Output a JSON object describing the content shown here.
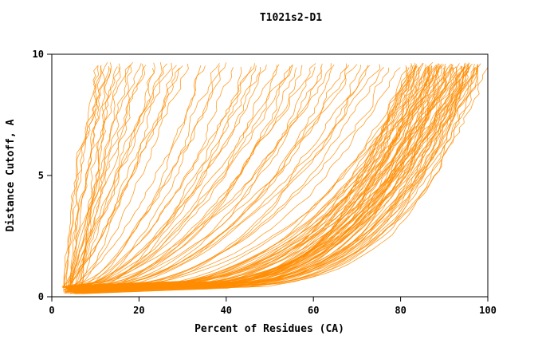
{
  "chart_data": {
    "type": "line",
    "title": "T1021s2-D1",
    "xlabel": "Percent of Residues (CA)",
    "ylabel": "Distance Cutoff, A",
    "xlim": [
      0,
      100
    ],
    "ylim": [
      0,
      10
    ],
    "xticks": [
      0,
      20,
      40,
      60,
      80,
      100
    ],
    "yticks": [
      0,
      5,
      10
    ],
    "grid": false,
    "legend": "none",
    "line_color": "#FF8C00",
    "axis_color": "#000000",
    "background_color": "#FFFFFF",
    "description": "Cumulative GDT-style plot: each orange curve is one model; x = percent of CA residues under the distance cutoff y. Curves parameterized as [percent_at_top_cutoff, shape_exponent].",
    "curve_y_top": 9.6,
    "x_base_range": [
      2.5,
      7
    ],
    "curves": [
      [
        100,
        0.2
      ],
      [
        99,
        0.24
      ],
      [
        99,
        0.18
      ],
      [
        99,
        0.22
      ],
      [
        98,
        0.28
      ],
      [
        98,
        0.21
      ],
      [
        98,
        0.19
      ],
      [
        97,
        0.18
      ],
      [
        97,
        0.3
      ],
      [
        97,
        0.24
      ],
      [
        97,
        0.21
      ],
      [
        96,
        0.2
      ],
      [
        96,
        0.26
      ],
      [
        96,
        0.33
      ],
      [
        96,
        0.22
      ],
      [
        96,
        0.29
      ],
      [
        95,
        0.18
      ],
      [
        95,
        0.22
      ],
      [
        95,
        0.28
      ],
      [
        95,
        0.35
      ],
      [
        95,
        0.2
      ],
      [
        94,
        0.2
      ],
      [
        94,
        0.25
      ],
      [
        94,
        0.31
      ],
      [
        94,
        0.22
      ],
      [
        94,
        0.28
      ],
      [
        93,
        0.18
      ],
      [
        93,
        0.23
      ],
      [
        93,
        0.28
      ],
      [
        93,
        0.36
      ],
      [
        93,
        0.21
      ],
      [
        92,
        0.2
      ],
      [
        92,
        0.26
      ],
      [
        92,
        0.32
      ],
      [
        92,
        0.23
      ],
      [
        91,
        0.18
      ],
      [
        91,
        0.23
      ],
      [
        91,
        0.29
      ],
      [
        91,
        0.37
      ],
      [
        91,
        0.21
      ],
      [
        90,
        0.19
      ],
      [
        90,
        0.24
      ],
      [
        90,
        0.3
      ],
      [
        90,
        0.38
      ],
      [
        90,
        0.22
      ],
      [
        89,
        0.2
      ],
      [
        89,
        0.26
      ],
      [
        89,
        0.33
      ],
      [
        89,
        0.23
      ],
      [
        88,
        0.18
      ],
      [
        88,
        0.23
      ],
      [
        88,
        0.29
      ],
      [
        88,
        0.37
      ],
      [
        88,
        0.21
      ],
      [
        87,
        0.2
      ],
      [
        87,
        0.25
      ],
      [
        87,
        0.31
      ],
      [
        87,
        0.23
      ],
      [
        86,
        0.19
      ],
      [
        86,
        0.24
      ],
      [
        86,
        0.3
      ],
      [
        86,
        0.39
      ],
      [
        86,
        0.22
      ],
      [
        85,
        0.21
      ],
      [
        85,
        0.26
      ],
      [
        85,
        0.34
      ],
      [
        85,
        0.24
      ],
      [
        84,
        0.19
      ],
      [
        84,
        0.25
      ],
      [
        84,
        0.31
      ],
      [
        84,
        0.23
      ],
      [
        83,
        0.21
      ],
      [
        83,
        0.27
      ],
      [
        83,
        0.36
      ],
      [
        83,
        0.24
      ],
      [
        82,
        0.2
      ],
      [
        82,
        0.26
      ],
      [
        82,
        0.33
      ],
      [
        82,
        0.23
      ],
      [
        80,
        0.38
      ],
      [
        78,
        0.43
      ],
      [
        76,
        0.4
      ],
      [
        75,
        0.48
      ],
      [
        73,
        0.44
      ],
      [
        72,
        0.38
      ],
      [
        70,
        0.5
      ],
      [
        70,
        0.36
      ],
      [
        68,
        0.46
      ],
      [
        67,
        0.41
      ],
      [
        66,
        0.39
      ],
      [
        65,
        0.53
      ],
      [
        63,
        0.48
      ],
      [
        62,
        0.43
      ],
      [
        61,
        0.42
      ],
      [
        60,
        0.56
      ],
      [
        58,
        0.5
      ],
      [
        57,
        0.46
      ],
      [
        56,
        0.45
      ],
      [
        55,
        0.58
      ],
      [
        54,
        0.52
      ],
      [
        52,
        0.48
      ],
      [
        51,
        0.49
      ],
      [
        50,
        0.6
      ],
      [
        49,
        0.54
      ],
      [
        47,
        0.5
      ],
      [
        46,
        0.53
      ],
      [
        45,
        0.63
      ],
      [
        44,
        0.56
      ],
      [
        42,
        0.52
      ],
      [
        40,
        0.66
      ],
      [
        39,
        0.58
      ],
      [
        38,
        0.54
      ],
      [
        36,
        0.68
      ],
      [
        35,
        0.6
      ],
      [
        32,
        0.72
      ],
      [
        30,
        0.78
      ],
      [
        29,
        0.83
      ],
      [
        28,
        0.75
      ],
      [
        27,
        0.88
      ],
      [
        26,
        0.8
      ],
      [
        25,
        0.93
      ],
      [
        24,
        0.86
      ],
      [
        23,
        0.98
      ],
      [
        22,
        0.9
      ],
      [
        21,
        1.03
      ],
      [
        20,
        0.96
      ],
      [
        19,
        1.08
      ],
      [
        18,
        1.0
      ],
      [
        17,
        1.13
      ],
      [
        16,
        1.06
      ],
      [
        15,
        1.18
      ],
      [
        15,
        0.95
      ],
      [
        14,
        1.1
      ],
      [
        13,
        1.23
      ],
      [
        13,
        1.0
      ],
      [
        12,
        1.16
      ],
      [
        12,
        1.33
      ],
      [
        11,
        1.26
      ],
      [
        11,
        1.43
      ],
      [
        10,
        1.36
      ]
    ]
  }
}
